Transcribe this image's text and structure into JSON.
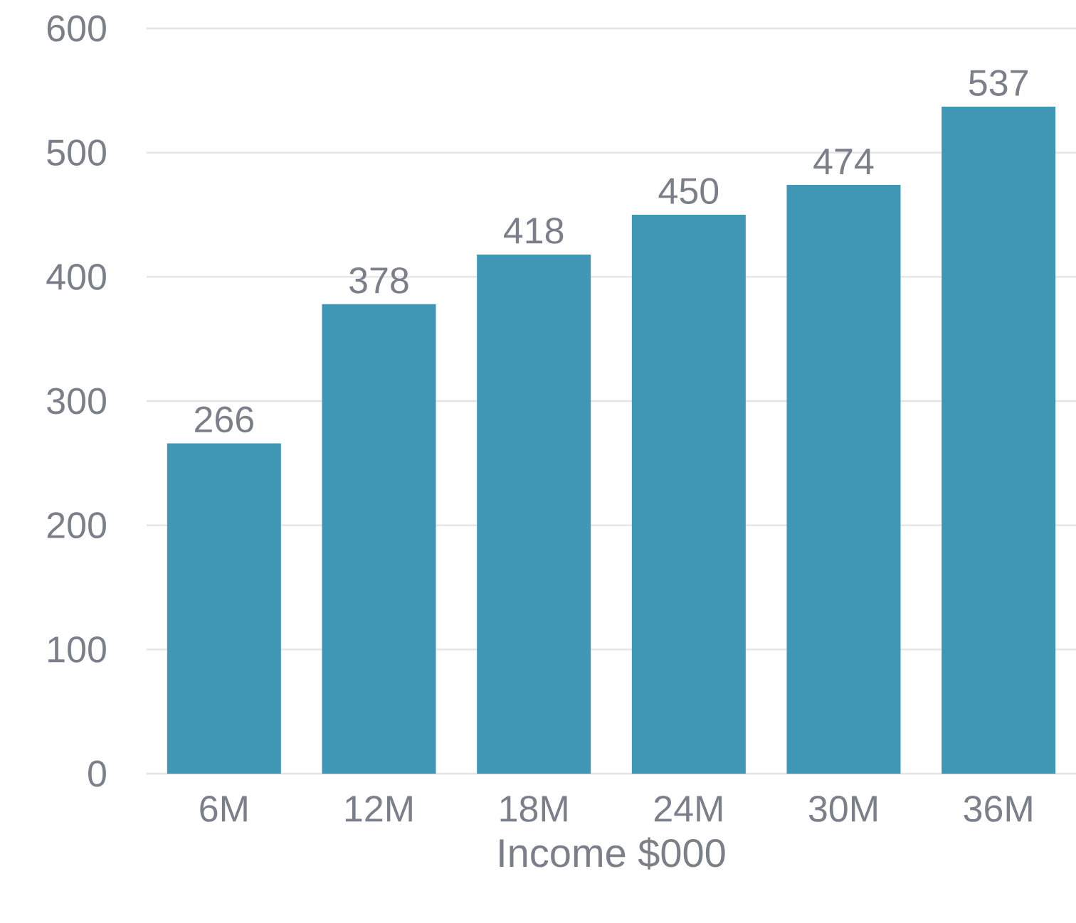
{
  "chart_data": {
    "type": "bar",
    "xlabel": "Income $000",
    "categories": [
      "6M",
      "12M",
      "18M",
      "24M",
      "30M",
      "36M"
    ],
    "values": [
      266,
      378,
      418,
      450,
      474,
      537
    ],
    "color": "#4096b5",
    "ylim": [
      0,
      600
    ],
    "yticks": [
      0,
      100,
      200,
      300,
      400,
      500,
      600
    ],
    "grid": "y",
    "data_labels": true
  }
}
